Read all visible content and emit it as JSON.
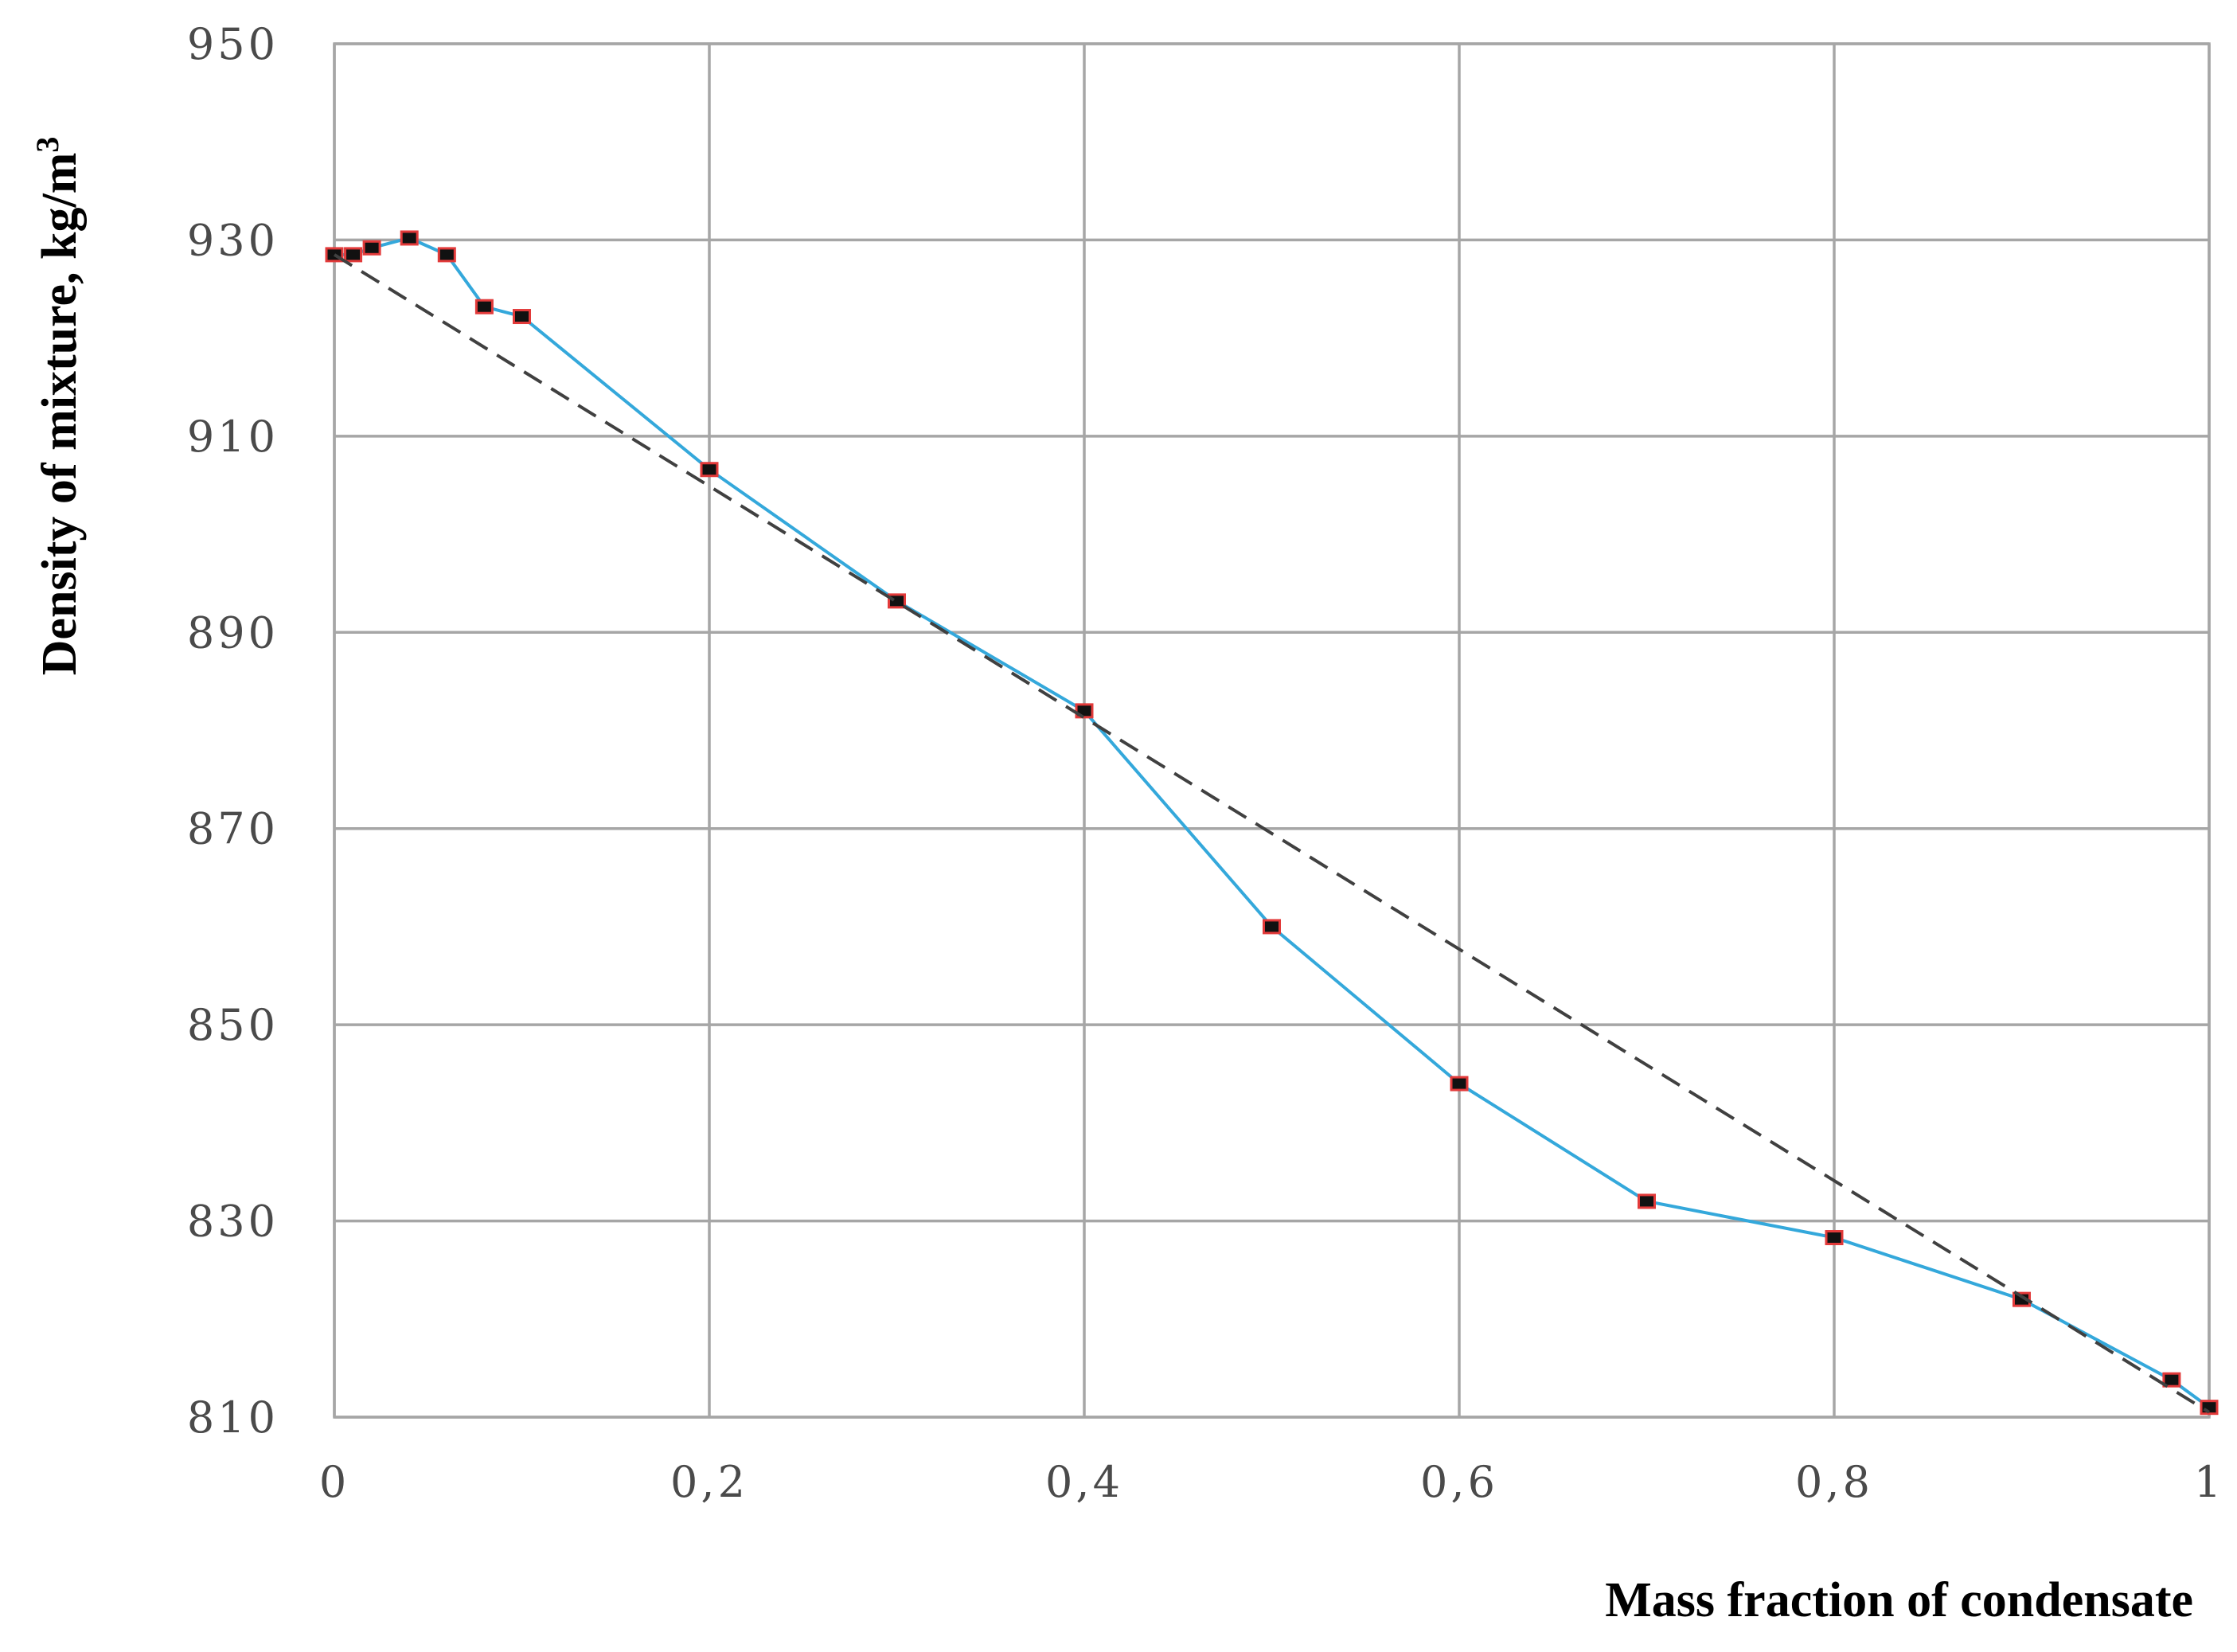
{
  "chart_data": {
    "type": "line",
    "xlabel": "Mass fraction of condensate",
    "ylabel": "Density of mixture, kg/m",
    "ylabel_superscript": "3",
    "xlim": [
      0,
      1
    ],
    "ylim": [
      810,
      950
    ],
    "grid": true,
    "x_ticks": [
      0,
      0.2,
      0.4,
      0.6,
      0.8,
      1
    ],
    "x_tick_labels": [
      "0",
      "0,2",
      "0,4",
      "0,6",
      "0,8",
      "1"
    ],
    "y_ticks": [
      810,
      830,
      850,
      870,
      890,
      910,
      930,
      950
    ],
    "y_tick_labels": [
      "810",
      "830",
      "850",
      "870",
      "890",
      "910",
      "930",
      "950"
    ],
    "series": [
      {
        "color": "#34a8db",
        "marker_color": "#111111",
        "marker_edge_color": "#e23a3a",
        "style": "solid-with-markers",
        "x": [
          0,
          0.01,
          0.02,
          0.04,
          0.06,
          0.08,
          0.1,
          0.2,
          0.3,
          0.4,
          0.5,
          0.6,
          0.7,
          0.8,
          0.9,
          0.98,
          1
        ],
        "y": [
          928.5,
          928.5,
          929.2,
          930.2,
          928.5,
          923.2,
          922.2,
          906.6,
          893.2,
          882.0,
          860.0,
          844.0,
          832.0,
          828.3,
          822.0,
          813.8,
          811.0
        ]
      },
      {
        "color": "#404040",
        "style": "dashed",
        "x": [
          0,
          1
        ],
        "y": [
          928.5,
          810.5
        ]
      }
    ]
  }
}
